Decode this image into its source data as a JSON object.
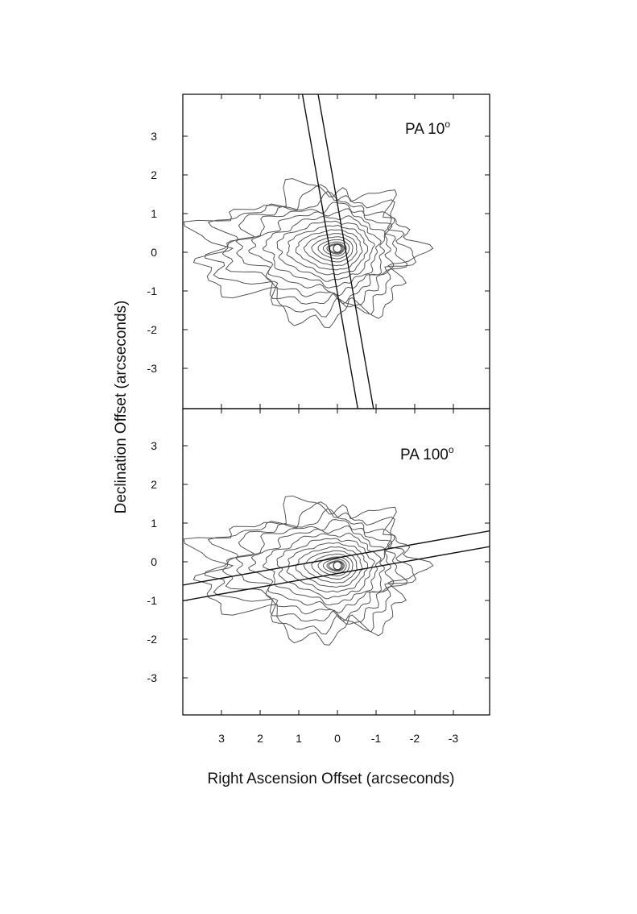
{
  "chart_data": {
    "type": "contour",
    "xlabel": "Right Ascension Offset (arcseconds)",
    "ylabel": "Declination Offset (arcseconds)",
    "x_ticks": [
      "3",
      "2",
      "1",
      "0",
      "-1",
      "-2",
      "-3"
    ],
    "y_ticks": [
      "3",
      "2",
      "1",
      "0",
      "-1",
      "-2",
      "-3"
    ],
    "panels": [
      {
        "label": "PA 10",
        "label_super": "o",
        "slit_position_angle_deg": 10,
        "slit_width_arcsec": 0.4,
        "xlim": [
          4,
          -4
        ],
        "ylim": [
          -4,
          4
        ],
        "nucleus": [
          0,
          0.1
        ]
      },
      {
        "label": "PA 100",
        "label_super": "o",
        "slit_position_angle_deg": 100,
        "slit_width_arcsec": 0.4,
        "xlim": [
          4,
          -4
        ],
        "ylim": [
          -4,
          4
        ],
        "nucleus": [
          0,
          -0.1
        ]
      }
    ],
    "contour_levels": 15
  }
}
